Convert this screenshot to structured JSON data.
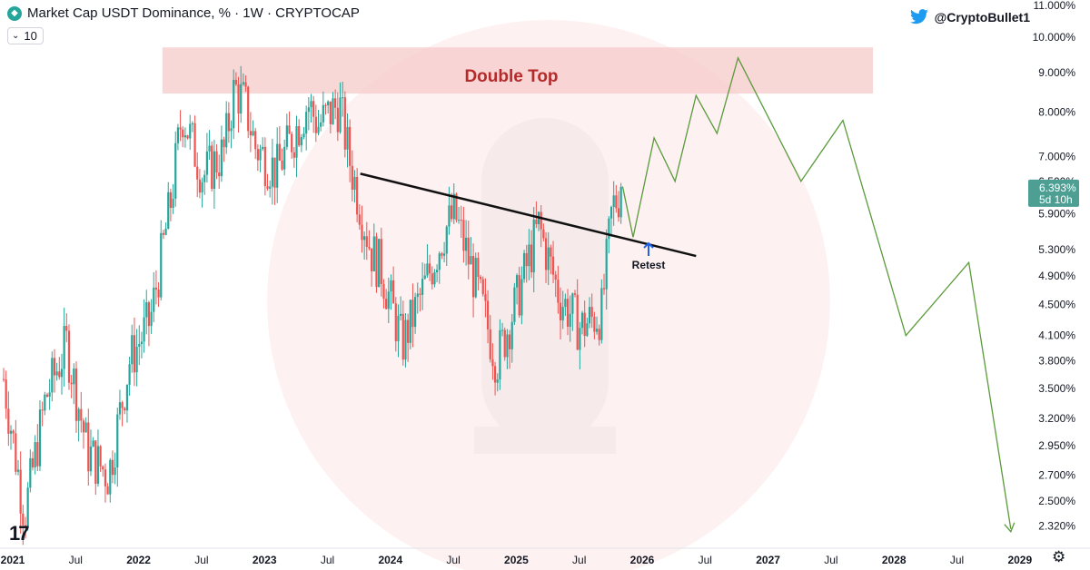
{
  "header": {
    "title": "Market Cap USDT Dominance, % · 1W · CRYPTOCAP",
    "length_value": "10"
  },
  "author": "@CryptoBullet1",
  "annotations": {
    "double_top": "Double Top",
    "retest": "Retest"
  },
  "price_badge": {
    "value": "6.393%",
    "countdown": "5d 10h"
  },
  "colors": {
    "up": "#26a69a",
    "down": "#ef5350",
    "projection": "#5a9a3b",
    "trendline": "#111111",
    "zone": "#f6c9c9",
    "zone_text": "#b52a2a",
    "badge": "#4d9f93",
    "twitter": "#1d9bf0"
  },
  "icons": [
    "tradingview-logo-icon",
    "chevron-down-icon",
    "twitter-icon",
    "arrow-up-icon",
    "gear-icon"
  ],
  "chart_data": {
    "type": "candlestick",
    "title": "Market Cap USDT Dominance, % · 1W · CRYPTOCAP",
    "y_scale": "log",
    "ylim": [
      2.2,
      11.0
    ],
    "y_ticks": [
      "11.000%",
      "10.000%",
      "9.000%",
      "8.000%",
      "7.000%",
      "6.500%",
      "5.900%",
      "5.300%",
      "4.900%",
      "4.500%",
      "4.100%",
      "3.800%",
      "3.500%",
      "3.200%",
      "2.950%",
      "2.700%",
      "2.500%",
      "2.320%"
    ],
    "x_ticks": [
      "2021",
      "Jul",
      "2022",
      "Jul",
      "2023",
      "Jul",
      "2024",
      "Jul",
      "2025",
      "Jul",
      "2026",
      "Jul",
      "2027",
      "Jul",
      "2028",
      "Jul",
      "2029"
    ],
    "price_path": [
      [
        "2021-01",
        3.6
      ],
      [
        "2021-03",
        2.4
      ],
      [
        "2021-05",
        3.4
      ],
      [
        "2021-07",
        4.0
      ],
      [
        "2021-09",
        2.9
      ],
      [
        "2021-11",
        2.7
      ],
      [
        "2022-01",
        3.8
      ],
      [
        "2022-03",
        4.3
      ],
      [
        "2022-05",
        6.2
      ],
      [
        "2022-06",
        8.0
      ],
      [
        "2022-08",
        6.6
      ],
      [
        "2022-10",
        7.1
      ],
      [
        "2022-11",
        8.6
      ],
      [
        "2022-12",
        8.2
      ],
      [
        "2023-01",
        7.2
      ],
      [
        "2023-03",
        6.7
      ],
      [
        "2023-06",
        8.2
      ],
      [
        "2023-07",
        7.7
      ],
      [
        "2023-09",
        8.2
      ],
      [
        "2023-10",
        6.9
      ],
      [
        "2023-12",
        5.3
      ],
      [
        "2024-01",
        5.0
      ],
      [
        "2024-03",
        4.0
      ],
      [
        "2024-05",
        4.7
      ],
      [
        "2024-07",
        5.6
      ],
      [
        "2024-08",
        5.9
      ],
      [
        "2024-10",
        4.8
      ],
      [
        "2024-12",
        3.8
      ],
      [
        "2025-02",
        4.6
      ],
      [
        "2025-04",
        5.7
      ],
      [
        "2025-06",
        4.6
      ],
      [
        "2025-08",
        4.2
      ],
      [
        "2025-10",
        4.4
      ],
      [
        "2025-11",
        6.0
      ],
      [
        "2025-12",
        6.39
      ]
    ],
    "double_top_zone": {
      "from": "2022-05",
      "to": "2027-11",
      "low": 8.45,
      "high": 9.7
    },
    "trendline": [
      [
        "2023-11",
        6.65
      ],
      [
        "2026-07",
        5.2
      ]
    ],
    "projection": [
      [
        "2025-12",
        6.4
      ],
      [
        "2026-01",
        5.5
      ],
      [
        "2026-03",
        7.4
      ],
      [
        "2026-05",
        6.5
      ],
      [
        "2026-07",
        8.4
      ],
      [
        "2026-09",
        7.5
      ],
      [
        "2026-11",
        9.4
      ],
      [
        "2027-05",
        6.5
      ],
      [
        "2027-09",
        7.8
      ],
      [
        "2028-03",
        4.1
      ],
      [
        "2028-09",
        5.1
      ],
      [
        "2029-01",
        2.3
      ]
    ],
    "last_value": 6.393
  }
}
